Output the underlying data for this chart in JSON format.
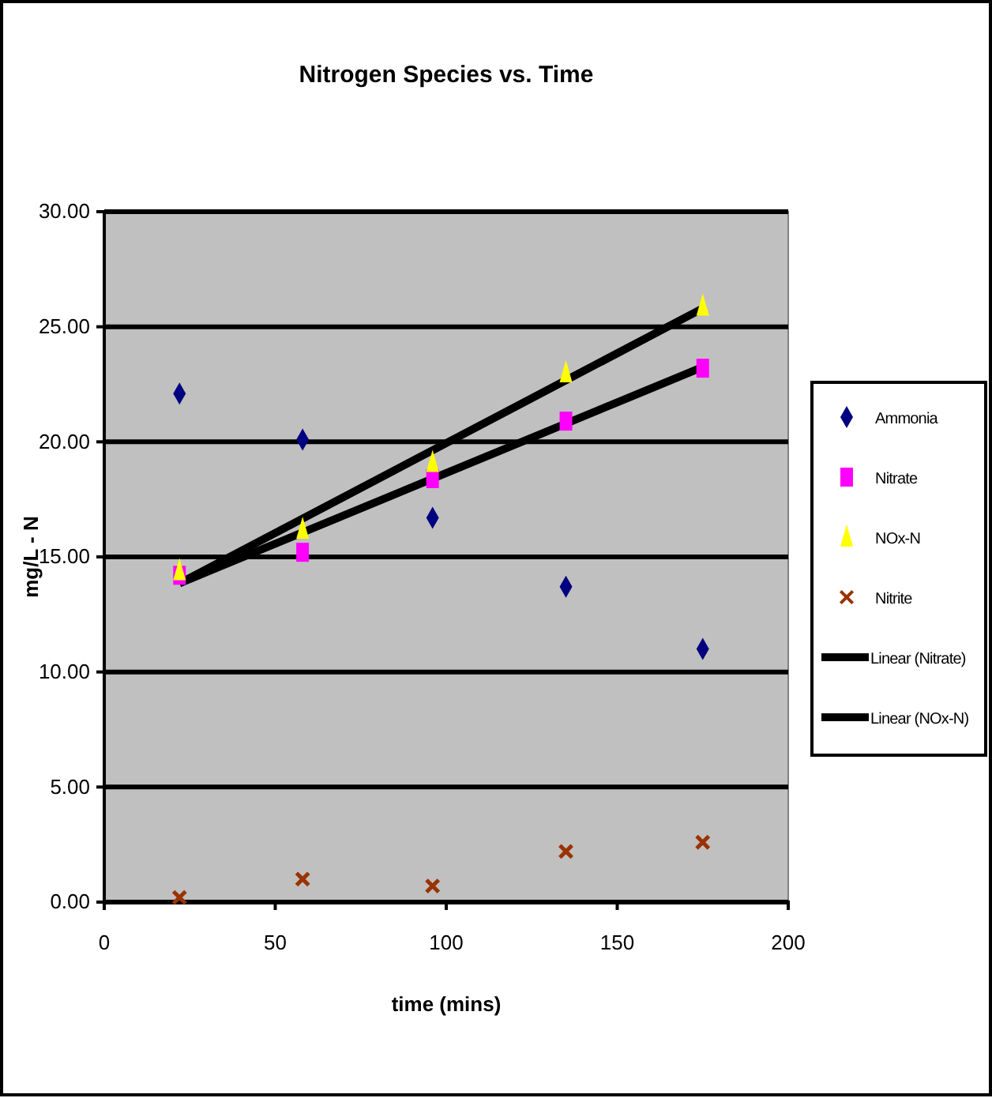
{
  "chart_data": {
    "type": "scatter",
    "title": "Nitrogen Species vs. Time",
    "xlabel": "time (mins)",
    "ylabel": "mg/L - N",
    "xlim": [
      0,
      200
    ],
    "xticks": [
      0,
      50,
      100,
      150,
      200
    ],
    "ylim": [
      0,
      30
    ],
    "yticks": [
      {
        "value": 0,
        "label": "0.00"
      },
      {
        "value": 5,
        "label": "5.00"
      },
      {
        "value": 10,
        "label": "10.00"
      },
      {
        "value": 15,
        "label": "15.00"
      },
      {
        "value": 20,
        "label": "20.00"
      },
      {
        "value": 25,
        "label": "25.00"
      },
      {
        "value": 30,
        "label": "30.00"
      }
    ],
    "grid": "y",
    "legend": "right",
    "series": [
      {
        "name": "Ammonia",
        "color": "#000080",
        "marker": "diamond",
        "x": [
          22,
          58,
          96,
          135,
          175
        ],
        "values": [
          22.1,
          20.1,
          16.7,
          13.7,
          11.0
        ]
      },
      {
        "name": "Nitrate",
        "color": "#ff00ff",
        "marker": "square",
        "x": [
          22,
          58,
          96,
          135,
          175
        ],
        "values": [
          14.2,
          15.2,
          18.4,
          20.9,
          23.2
        ]
      },
      {
        "name": "NOx-N",
        "color": "#ffff00",
        "marker": "triangle",
        "x": [
          22,
          58,
          96,
          135,
          175
        ],
        "values": [
          14.4,
          16.2,
          19.1,
          23.0,
          25.9
        ]
      },
      {
        "name": "Nitrite",
        "color": "#993300",
        "marker": "cross",
        "x": [
          22,
          58,
          96,
          135,
          175
        ],
        "values": [
          0.2,
          1.0,
          0.7,
          2.2,
          2.6
        ]
      },
      {
        "name": "Linear (Nitrate)",
        "type": "line",
        "color": "#000000",
        "marker": "none",
        "line_style": "solid",
        "x": [
          22,
          175
        ],
        "values": [
          13.85,
          23.25
        ]
      },
      {
        "name": "Linear (NOx-N)",
        "type": "line",
        "color": "#000000",
        "marker": "none",
        "line_style": "solid",
        "x": [
          22,
          175
        ],
        "values": [
          13.85,
          25.8
        ]
      }
    ]
  }
}
